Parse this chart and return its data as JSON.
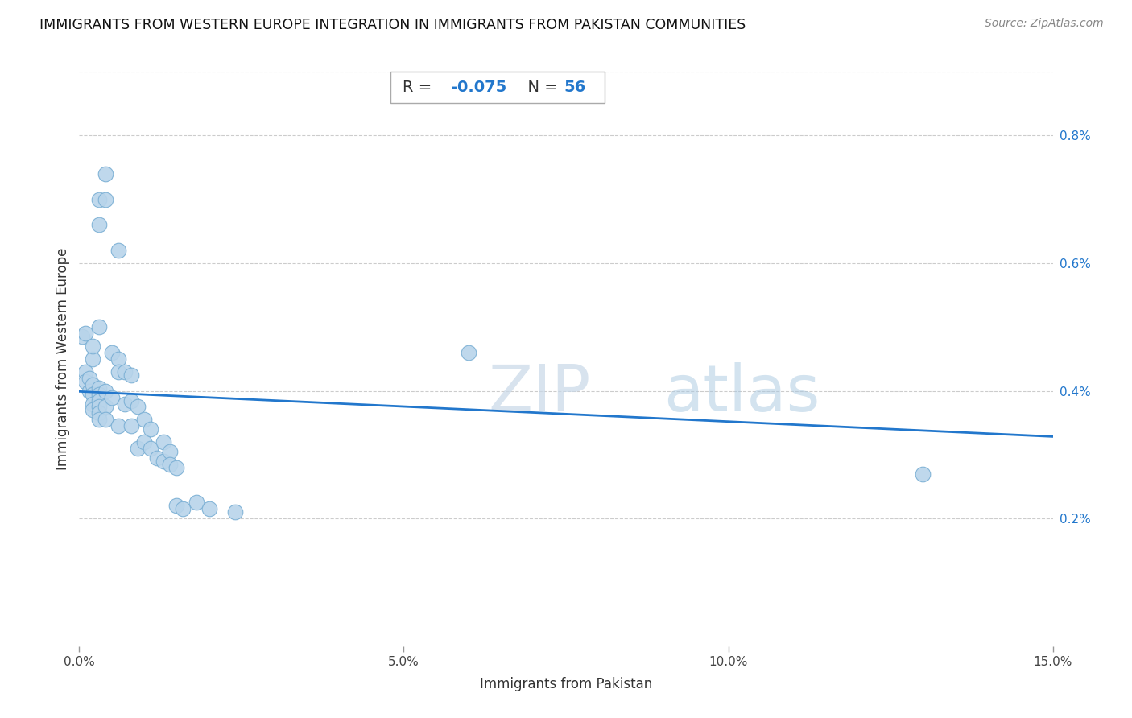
{
  "title": "IMMIGRANTS FROM WESTERN EUROPE INTEGRATION IN IMMIGRANTS FROM PAKISTAN COMMUNITIES",
  "source": "Source: ZipAtlas.com",
  "xlabel": "Immigrants from Pakistan",
  "ylabel": "Immigrants from Western Europe",
  "R": -0.075,
  "N": 56,
  "xlim": [
    0,
    0.15
  ],
  "ylim": [
    0,
    0.009
  ],
  "xticks": [
    0.0,
    0.05,
    0.1,
    0.15
  ],
  "xtick_labels": [
    "0.0%",
    "5.0%",
    "10.0%",
    "15.0%"
  ],
  "yticks": [
    0.002,
    0.004,
    0.006,
    0.008
  ],
  "ytick_labels": [
    "0.2%",
    "0.4%",
    "0.6%",
    "0.8%"
  ],
  "scatter_color": "#b8d4ea",
  "scatter_edgecolor": "#7aafd4",
  "line_color": "#2277cc",
  "title_fontsize": 12.5,
  "axis_label_fontsize": 12,
  "tick_fontsize": 11,
  "points": [
    [
      0.0005,
      0.00485
    ],
    [
      0.001,
      0.0043
    ],
    [
      0.001,
      0.00415
    ],
    [
      0.0015,
      0.0042
    ],
    [
      0.0015,
      0.004
    ],
    [
      0.002,
      0.0041
    ],
    [
      0.002,
      0.00395
    ],
    [
      0.002,
      0.0038
    ],
    [
      0.002,
      0.0037
    ],
    [
      0.003,
      0.00405
    ],
    [
      0.003,
      0.00395
    ],
    [
      0.003,
      0.00385
    ],
    [
      0.003,
      0.00375
    ],
    [
      0.003,
      0.00365
    ],
    [
      0.003,
      0.00355
    ],
    [
      0.004,
      0.004
    ],
    [
      0.004,
      0.00375
    ],
    [
      0.004,
      0.00355
    ],
    [
      0.005,
      0.0046
    ],
    [
      0.005,
      0.0039
    ],
    [
      0.006,
      0.0045
    ],
    [
      0.006,
      0.0043
    ],
    [
      0.006,
      0.00345
    ],
    [
      0.007,
      0.0043
    ],
    [
      0.007,
      0.0038
    ],
    [
      0.008,
      0.00425
    ],
    [
      0.008,
      0.00385
    ],
    [
      0.008,
      0.00345
    ],
    [
      0.009,
      0.00375
    ],
    [
      0.009,
      0.0031
    ],
    [
      0.01,
      0.00355
    ],
    [
      0.01,
      0.0032
    ],
    [
      0.011,
      0.0034
    ],
    [
      0.011,
      0.0031
    ],
    [
      0.012,
      0.00295
    ],
    [
      0.013,
      0.0032
    ],
    [
      0.013,
      0.0029
    ],
    [
      0.014,
      0.00305
    ],
    [
      0.014,
      0.00285
    ],
    [
      0.015,
      0.0028
    ],
    [
      0.001,
      0.0049
    ],
    [
      0.002,
      0.0045
    ],
    [
      0.003,
      0.007
    ],
    [
      0.003,
      0.0066
    ],
    [
      0.004,
      0.0074
    ],
    [
      0.004,
      0.007
    ],
    [
      0.006,
      0.0062
    ],
    [
      0.003,
      0.005
    ],
    [
      0.002,
      0.0047
    ],
    [
      0.015,
      0.0022
    ],
    [
      0.016,
      0.00215
    ],
    [
      0.018,
      0.00225
    ],
    [
      0.02,
      0.00215
    ],
    [
      0.024,
      0.0021
    ],
    [
      0.06,
      0.0046
    ],
    [
      0.13,
      0.0027
    ]
  ]
}
